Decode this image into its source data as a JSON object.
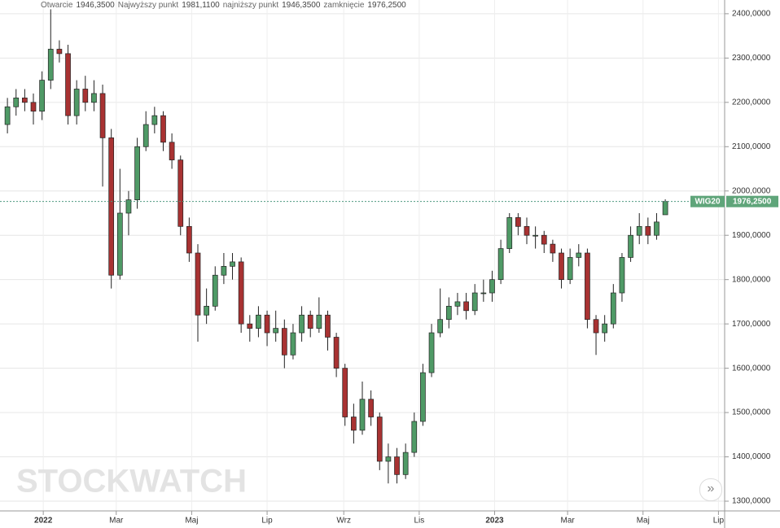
{
  "header": [
    {
      "label": "Otwarcie",
      "value": "1946,3500"
    },
    {
      "label": "Najwyższy punkt",
      "value": "1981,1100"
    },
    {
      "label": "najniższy punkt",
      "value": "1946,3500"
    },
    {
      "label": "zamknięcie",
      "value": "1976,2500"
    }
  ],
  "chart_data": {
    "type": "candlestick",
    "symbol": "WIG20",
    "watermark": "STOCKWATCH",
    "up_color": "#4f9a66",
    "down_color": "#a83232",
    "grid": true,
    "last_price": {
      "value": 1976.25,
      "label": "1976,2500"
    },
    "xlim": [
      -35,
      551
    ],
    "xticks": [
      {
        "value": 0,
        "label": "2022"
      },
      {
        "value": 59,
        "label": "Mar"
      },
      {
        "value": 120,
        "label": "Maj"
      },
      {
        "value": 181,
        "label": "Lip"
      },
      {
        "value": 243,
        "label": "Wrz"
      },
      {
        "value": 304,
        "label": "Lis"
      },
      {
        "value": 365,
        "label": "2023"
      },
      {
        "value": 424,
        "label": "Mar"
      },
      {
        "value": 485,
        "label": "Maj"
      },
      {
        "value": 546,
        "label": "Lip"
      }
    ],
    "ylim": [
      1278,
      2431
    ],
    "yticks": [
      {
        "value": 1300,
        "label": "1300,0000"
      },
      {
        "value": 1400,
        "label": "1400,0000"
      },
      {
        "value": 1500,
        "label": "1500,0000"
      },
      {
        "value": 1600,
        "label": "1600,0000"
      },
      {
        "value": 1700,
        "label": "1700,0000"
      },
      {
        "value": 1800,
        "label": "1800,0000"
      },
      {
        "value": 1900,
        "label": "1900,0000"
      },
      {
        "value": 2000,
        "label": "2000,0000"
      },
      {
        "value": 2100,
        "label": "2100,0000"
      },
      {
        "value": 2200,
        "label": "2200,0000"
      },
      {
        "value": 2300,
        "label": "2300,0000"
      },
      {
        "value": 2400,
        "label": "2400,0000"
      }
    ],
    "x": [
      -29,
      -22,
      -15,
      -8,
      -1,
      6,
      13,
      20,
      27,
      34,
      41,
      48,
      55,
      62,
      69,
      76,
      83,
      90,
      97,
      104,
      111,
      118,
      125,
      132,
      139,
      146,
      153,
      160,
      167,
      174,
      181,
      188,
      195,
      202,
      209,
      216,
      223,
      230,
      237,
      244,
      251,
      258,
      265,
      272,
      279,
      286,
      293,
      300,
      307,
      314,
      321,
      328,
      335,
      342,
      349,
      356,
      363,
      370,
      377,
      384,
      391,
      398,
      405,
      412,
      419,
      426,
      433,
      440,
      447,
      454,
      461,
      468,
      475,
      482,
      489,
      496,
      503
    ],
    "open": [
      2150,
      2190,
      2210,
      2200,
      2180,
      2250,
      2320,
      2310,
      2170,
      2230,
      2200,
      2220,
      2120,
      1810,
      1950,
      1980,
      2100,
      2150,
      2170,
      2110,
      2070,
      1920,
      1860,
      1720,
      1740,
      1810,
      1830,
      1840,
      1700,
      1690,
      1720,
      1680,
      1690,
      1630,
      1680,
      1720,
      1690,
      1720,
      1670,
      1600,
      1490,
      1460,
      1530,
      1490,
      1390,
      1400,
      1360,
      1410,
      1480,
      1590,
      1680,
      1710,
      1740,
      1750,
      1730,
      1770,
      1770,
      1800,
      1870,
      1940,
      1920,
      1900,
      1900,
      1880,
      1860,
      1800,
      1850,
      1860,
      1710,
      1680,
      1700,
      1770,
      1850,
      1900,
      1920,
      1900,
      1946.35
    ],
    "high": [
      2210,
      2230,
      2230,
      2220,
      2270,
      2410,
      2340,
      2330,
      2250,
      2260,
      2250,
      2240,
      2140,
      2050,
      2000,
      2120,
      2180,
      2190,
      2180,
      2130,
      2080,
      1940,
      1880,
      1780,
      1830,
      1860,
      1860,
      1850,
      1720,
      1740,
      1730,
      1730,
      1710,
      1700,
      1740,
      1730,
      1760,
      1730,
      1680,
      1610,
      1520,
      1570,
      1550,
      1500,
      1430,
      1420,
      1430,
      1500,
      1610,
      1700,
      1780,
      1760,
      1770,
      1770,
      1790,
      1800,
      1820,
      1890,
      1950,
      1950,
      1940,
      1920,
      1910,
      1890,
      1870,
      1870,
      1880,
      1870,
      1720,
      1720,
      1790,
      1860,
      1920,
      1950,
      1940,
      1950,
      1981.11
    ],
    "low": [
      2130,
      2170,
      2180,
      2150,
      2160,
      2230,
      2290,
      2150,
      2150,
      2180,
      2180,
      2010,
      1780,
      1800,
      1900,
      1960,
      2090,
      2130,
      2090,
      2050,
      1900,
      1840,
      1660,
      1700,
      1730,
      1790,
      1800,
      1680,
      1660,
      1670,
      1650,
      1660,
      1600,
      1620,
      1660,
      1670,
      1680,
      1640,
      1580,
      1470,
      1430,
      1450,
      1470,
      1370,
      1340,
      1340,
      1350,
      1400,
      1470,
      1580,
      1670,
      1690,
      1720,
      1710,
      1720,
      1750,
      1750,
      1790,
      1860,
      1900,
      1880,
      1870,
      1860,
      1840,
      1780,
      1790,
      1830,
      1690,
      1630,
      1660,
      1690,
      1750,
      1840,
      1880,
      1880,
      1890,
      1946.35
    ],
    "close": [
      2190,
      2210,
      2200,
      2180,
      2250,
      2320,
      2310,
      2170,
      2230,
      2200,
      2220,
      2120,
      1810,
      1950,
      1980,
      2100,
      2150,
      2170,
      2110,
      2070,
      1920,
      1860,
      1720,
      1740,
      1810,
      1830,
      1840,
      1700,
      1690,
      1720,
      1680,
      1690,
      1630,
      1680,
      1720,
      1690,
      1720,
      1670,
      1600,
      1490,
      1460,
      1530,
      1490,
      1390,
      1400,
      1360,
      1410,
      1480,
      1590,
      1680,
      1710,
      1740,
      1750,
      1730,
      1770,
      1770,
      1800,
      1870,
      1940,
      1920,
      1900,
      1900,
      1880,
      1860,
      1800,
      1850,
      1860,
      1710,
      1680,
      1700,
      1770,
      1850,
      1900,
      1920,
      1900,
      1930,
      1976.25
    ]
  }
}
